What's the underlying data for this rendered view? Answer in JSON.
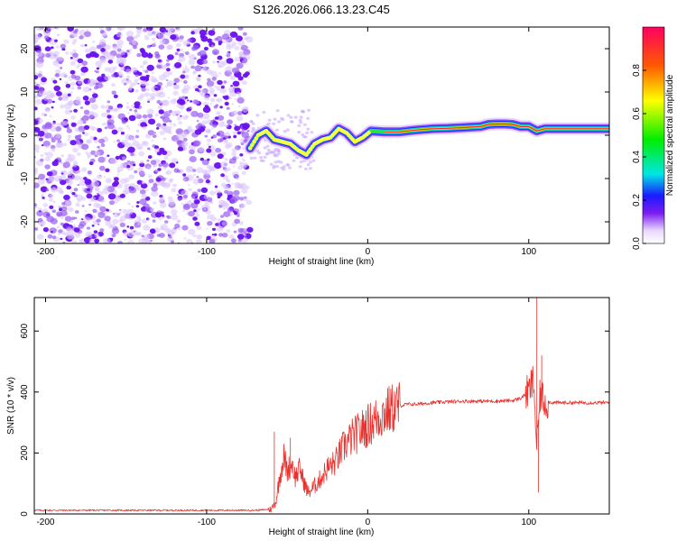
{
  "title": "S126.2026.066.13.23.C45",
  "chart_data": [
    {
      "type": "heatmap",
      "xlabel": "Height of straight line (km)",
      "ylabel": "Frequency (Hz)",
      "xlim": [
        -207,
        150
      ],
      "ylim": [
        -25,
        25
      ],
      "xticks": [
        -200,
        -100,
        0,
        100
      ],
      "yticks": [
        -20,
        -10,
        0,
        10,
        20
      ],
      "noise_region_x": [
        -207,
        -73
      ],
      "ridge": {
        "x": [
          -73,
          -68,
          -63,
          -58,
          -53,
          -48,
          -43,
          -38,
          -33,
          -28,
          -23,
          -18,
          -13,
          -8,
          -3,
          2,
          10,
          20,
          30,
          40,
          50,
          60,
          70,
          75,
          80,
          85,
          90,
          95,
          100,
          105,
          110,
          120,
          130,
          140,
          150
        ],
        "freq": [
          -3,
          0,
          1,
          -1,
          -1.5,
          -2,
          -3.5,
          -4.5,
          -2,
          -1,
          -0.5,
          1.5,
          0.5,
          -1.5,
          -0.5,
          1,
          0.8,
          0.8,
          1.2,
          1.5,
          1.6,
          1.8,
          2,
          2.5,
          2.6,
          2.6,
          2.5,
          2,
          2,
          1,
          1.5,
          1.5,
          1.5,
          1.5,
          1.5
        ]
      },
      "colorbar": {
        "label": "Normalized spectral amplitude",
        "range": [
          0,
          1
        ],
        "ticks": [
          "0.0",
          "0.2",
          "0.4",
          "0.6",
          "0.8"
        ],
        "tick_values": [
          0,
          0.2,
          0.4,
          0.6,
          0.8
        ]
      }
    },
    {
      "type": "line",
      "xlabel": "Height of straight line (km)",
      "ylabel": "SNR (10 * v/v)",
      "xlim": [
        -207,
        150
      ],
      "ylim": [
        0,
        710
      ],
      "xticks": [
        -200,
        -100,
        0,
        100
      ],
      "yticks": [
        0,
        200,
        400,
        600
      ],
      "color": "#e8322e",
      "series": [
        {
          "name": "SNR",
          "x": [
            -207,
            -150,
            -100,
            -70,
            -60,
            -57,
            -55,
            -52,
            -50,
            -47,
            -45,
            -42,
            -40,
            -37,
            -35,
            -30,
            -25,
            -20,
            -15,
            -10,
            -5,
            0,
            5,
            10,
            15,
            20,
            25,
            30,
            40,
            50,
            60,
            70,
            80,
            90,
            95,
            100,
            103,
            105,
            107,
            110,
            115,
            120,
            130,
            140,
            150
          ],
          "y": [
            12,
            12,
            12,
            12,
            15,
            40,
            110,
            190,
            140,
            170,
            120,
            150,
            110,
            70,
            80,
            110,
            150,
            170,
            220,
            250,
            270,
            290,
            310,
            330,
            345,
            355,
            360,
            360,
            365,
            368,
            370,
            370,
            370,
            372,
            380,
            400,
            440,
            210,
            390,
            370,
            365,
            365,
            365,
            365,
            365
          ],
          "spikes": [
            {
              "x": -58,
              "y": 270
            },
            {
              "x": -48,
              "y": 250
            },
            {
              "x": 105,
              "y": 710
            },
            {
              "x": 106,
              "y": 70
            },
            {
              "x": 108,
              "y": 520
            }
          ]
        }
      ]
    }
  ]
}
